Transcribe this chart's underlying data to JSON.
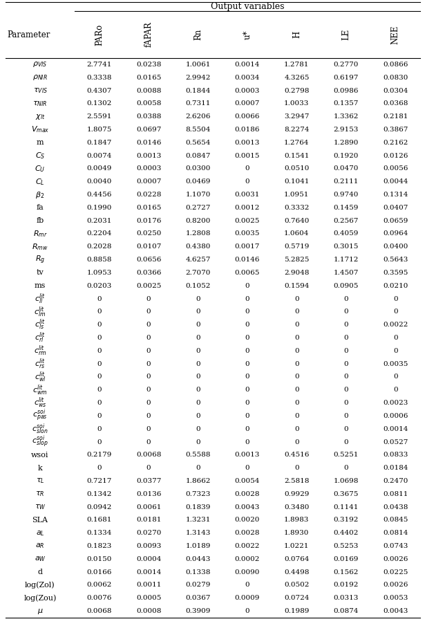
{
  "title": "Output variables",
  "col_headers": [
    "PARo",
    "fAPAR",
    "Rn",
    "u*",
    "H",
    "LE",
    "NEE"
  ],
  "param_labels_tex": [
    "$\\rho_{VIS}$",
    "$\\rho_{NIR}$",
    "$\\tau_{VIS}$",
    "$\\tau_{NIR}$",
    "$\\chi_{lt}$",
    "$V_{max}$",
    "m",
    "$C_S$",
    "$C_U$",
    "$C_L$",
    "$\\beta_2$",
    "fa",
    "fb",
    "$R_{mr}$",
    "$R_{mw}$",
    "$R_g$",
    "tv",
    "ms",
    "$c^{lit}_{ll}$",
    "$c^{lit}_{lm}$",
    "$c^{lit}_{ls}$",
    "$c^{lit}_{rl}$",
    "$c^{lit}_{rm}$",
    "$c^{lit}_{rs}$",
    "$c^{lit}_{wl}$",
    "$c^{lit}_{wm}$",
    "$c^{lit}_{ws}$",
    "$c^{soi}_{pas}$",
    "$c^{soi}_{slon}$",
    "$c^{soi}_{slop}$",
    "wsoi",
    "k",
    "$\\tau_L$",
    "$\\tau_R$",
    "$\\tau_W$",
    "SLA",
    "$a_L$",
    "$a_R$",
    "$a_W$",
    "d",
    "log(Zol)",
    "log(Zou)",
    "$\\mu$"
  ],
  "data": [
    [
      2.7741,
      0.0238,
      1.0061,
      0.0014,
      1.2781,
      0.277,
      0.0866
    ],
    [
      0.3338,
      0.0165,
      2.9942,
      0.0034,
      4.3265,
      0.6197,
      0.083
    ],
    [
      0.4307,
      0.0088,
      0.1844,
      0.0003,
      0.2798,
      0.0986,
      0.0304
    ],
    [
      0.1302,
      0.0058,
      0.7311,
      0.0007,
      1.0033,
      0.1357,
      0.0368
    ],
    [
      2.5591,
      0.0388,
      2.6206,
      0.0066,
      3.2947,
      1.3362,
      0.2181
    ],
    [
      1.8075,
      0.0697,
      8.5504,
      0.0186,
      8.2274,
      2.9153,
      0.3867
    ],
    [
      0.1847,
      0.0146,
      0.5654,
      0.0013,
      1.2764,
      1.289,
      0.2162
    ],
    [
      0.0074,
      0.0013,
      0.0847,
      0.0015,
      0.1541,
      0.192,
      0.0126
    ],
    [
      0.0049,
      0.0003,
      0.03,
      0,
      0.051,
      0.047,
      0.0056
    ],
    [
      0.004,
      0.0007,
      0.0469,
      0,
      0.1041,
      0.2111,
      0.0044
    ],
    [
      0.4456,
      0.0228,
      1.107,
      0.0031,
      1.0951,
      0.974,
      0.1314
    ],
    [
      0.199,
      0.0165,
      0.2727,
      0.0012,
      0.3332,
      0.1459,
      0.0407
    ],
    [
      0.2031,
      0.0176,
      0.82,
      0.0025,
      0.764,
      0.2567,
      0.0659
    ],
    [
      0.2204,
      0.025,
      1.2808,
      0.0035,
      1.0604,
      0.4059,
      0.0964
    ],
    [
      0.2028,
      0.0107,
      0.438,
      0.0017,
      0.5719,
      0.3015,
      0.04
    ],
    [
      0.8858,
      0.0656,
      4.6257,
      0.0146,
      5.2825,
      1.1712,
      0.5643
    ],
    [
      1.0953,
      0.0366,
      2.707,
      0.0065,
      2.9048,
      1.4507,
      0.3595
    ],
    [
      0.0203,
      0.0025,
      0.1052,
      0,
      0.1594,
      0.0905,
      0.021
    ],
    [
      0,
      0,
      0,
      0,
      0,
      0,
      0
    ],
    [
      0,
      0,
      0,
      0,
      0,
      0,
      0
    ],
    [
      0,
      0,
      0,
      0,
      0,
      0,
      0.0022
    ],
    [
      0,
      0,
      0,
      0,
      0,
      0,
      0
    ],
    [
      0,
      0,
      0,
      0,
      0,
      0,
      0
    ],
    [
      0,
      0,
      0,
      0,
      0,
      0,
      0.0035
    ],
    [
      0,
      0,
      0,
      0,
      0,
      0,
      0
    ],
    [
      0,
      0,
      0,
      0,
      0,
      0,
      0
    ],
    [
      0,
      0,
      0,
      0,
      0,
      0,
      0.0023
    ],
    [
      0,
      0,
      0,
      0,
      0,
      0,
      0.0006
    ],
    [
      0,
      0,
      0,
      0,
      0,
      0,
      0.0014
    ],
    [
      0,
      0,
      0,
      0,
      0,
      0,
      0.0527
    ],
    [
      0.2179,
      0.0068,
      0.5588,
      0.0013,
      0.4516,
      0.5251,
      0.0833
    ],
    [
      0,
      0,
      0,
      0,
      0,
      0,
      0.0184
    ],
    [
      0.7217,
      0.0377,
      1.8662,
      0.0054,
      2.5818,
      1.0698,
      0.247
    ],
    [
      0.1342,
      0.0136,
      0.7323,
      0.0028,
      0.9929,
      0.3675,
      0.0811
    ],
    [
      0.0942,
      0.0061,
      0.1839,
      0.0043,
      0.348,
      0.1141,
      0.0438
    ],
    [
      0.1681,
      0.0181,
      1.3231,
      0.002,
      1.8983,
      0.3192,
      0.0845
    ],
    [
      0.1334,
      0.027,
      1.3143,
      0.0028,
      1.893,
      0.4402,
      0.0814
    ],
    [
      0.1823,
      0.0093,
      1.0189,
      0.0022,
      1.0221,
      0.5253,
      0.0743
    ],
    [
      0.015,
      0.0004,
      0.0443,
      0.0002,
      0.0764,
      0.0169,
      0.0026
    ],
    [
      0.0166,
      0.0014,
      0.1338,
      0.009,
      0.4498,
      0.1562,
      0.0225
    ],
    [
      0.0062,
      0.0011,
      0.0279,
      0,
      0.0502,
      0.0192,
      0.0026
    ],
    [
      0.0076,
      0.0005,
      0.0367,
      0.0009,
      0.0724,
      0.0313,
      0.0053
    ],
    [
      0.0068,
      0.0008,
      0.3909,
      0,
      0.1989,
      0.0874,
      0.0043
    ]
  ],
  "fig_width": 6.15,
  "fig_height": 9.05,
  "dpi": 100
}
